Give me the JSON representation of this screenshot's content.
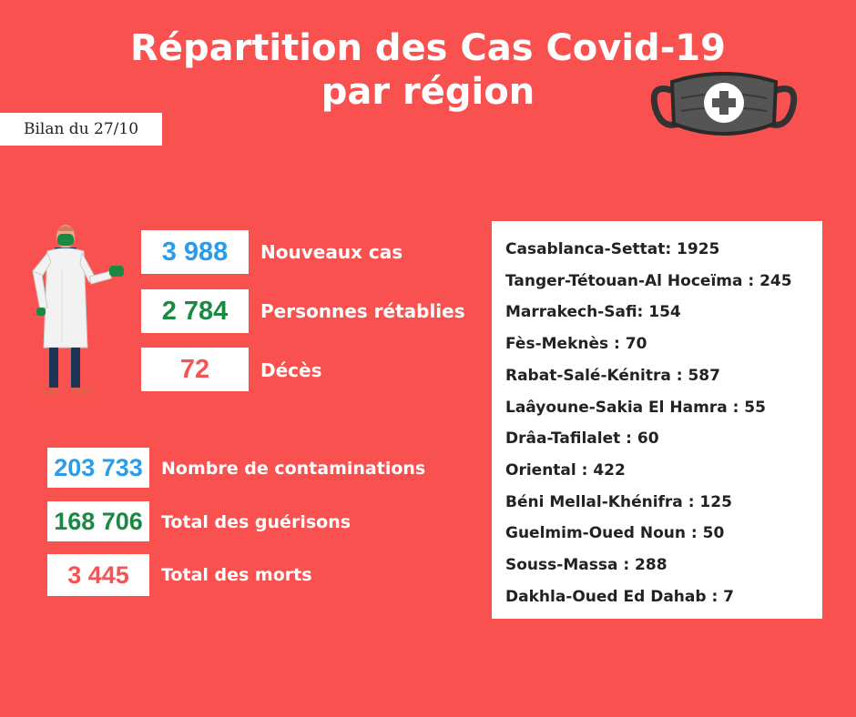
{
  "header": {
    "title_line1": "Répartition des Cas Covid-19",
    "title_line2": "par région",
    "date_badge": "Bilan du 27/10"
  },
  "daily_stats": [
    {
      "value": "3 988",
      "label": "Nouveaux cas",
      "color": "#2b9bea"
    },
    {
      "value": "2 784",
      "label": "Personnes rétablies",
      "color": "#1a8a43"
    },
    {
      "value": "72",
      "label": "Décès",
      "color": "#f35555"
    }
  ],
  "total_stats": [
    {
      "value": "203 733",
      "label": "Nombre de contaminations",
      "color": "#2b9bea"
    },
    {
      "value": "168 706",
      "label": "Total des guérisons",
      "color": "#1a8a43"
    },
    {
      "value": "3 445",
      "label": "Total des morts",
      "color": "#f35555"
    }
  ],
  "regions": [
    "Casablanca-Settat: 1925",
    "Tanger-Tétouan-Al Hoceïma : 245",
    "Marrakech-Safi: 154",
    "Fès-Meknès : 70",
    "Rabat-Salé-Kénitra : 587",
    "Laâyoune-Sakia El Hamra : 55",
    "Drâa-Tafilalet : 60",
    "Oriental : 422",
    "Béni Mellal-Khénifra : 125",
    "Guelmim-Oued Noun : 50",
    "Souss-Massa : 288",
    "Dakhla-Oued Ed Dahab : 7"
  ],
  "icons": {
    "mask": "medical-mask-icon",
    "doctor": "doctor-illustration"
  },
  "colors": {
    "background": "#f8514f",
    "blue": "#2b9bea",
    "green": "#1a8a43",
    "red": "#f35555"
  }
}
